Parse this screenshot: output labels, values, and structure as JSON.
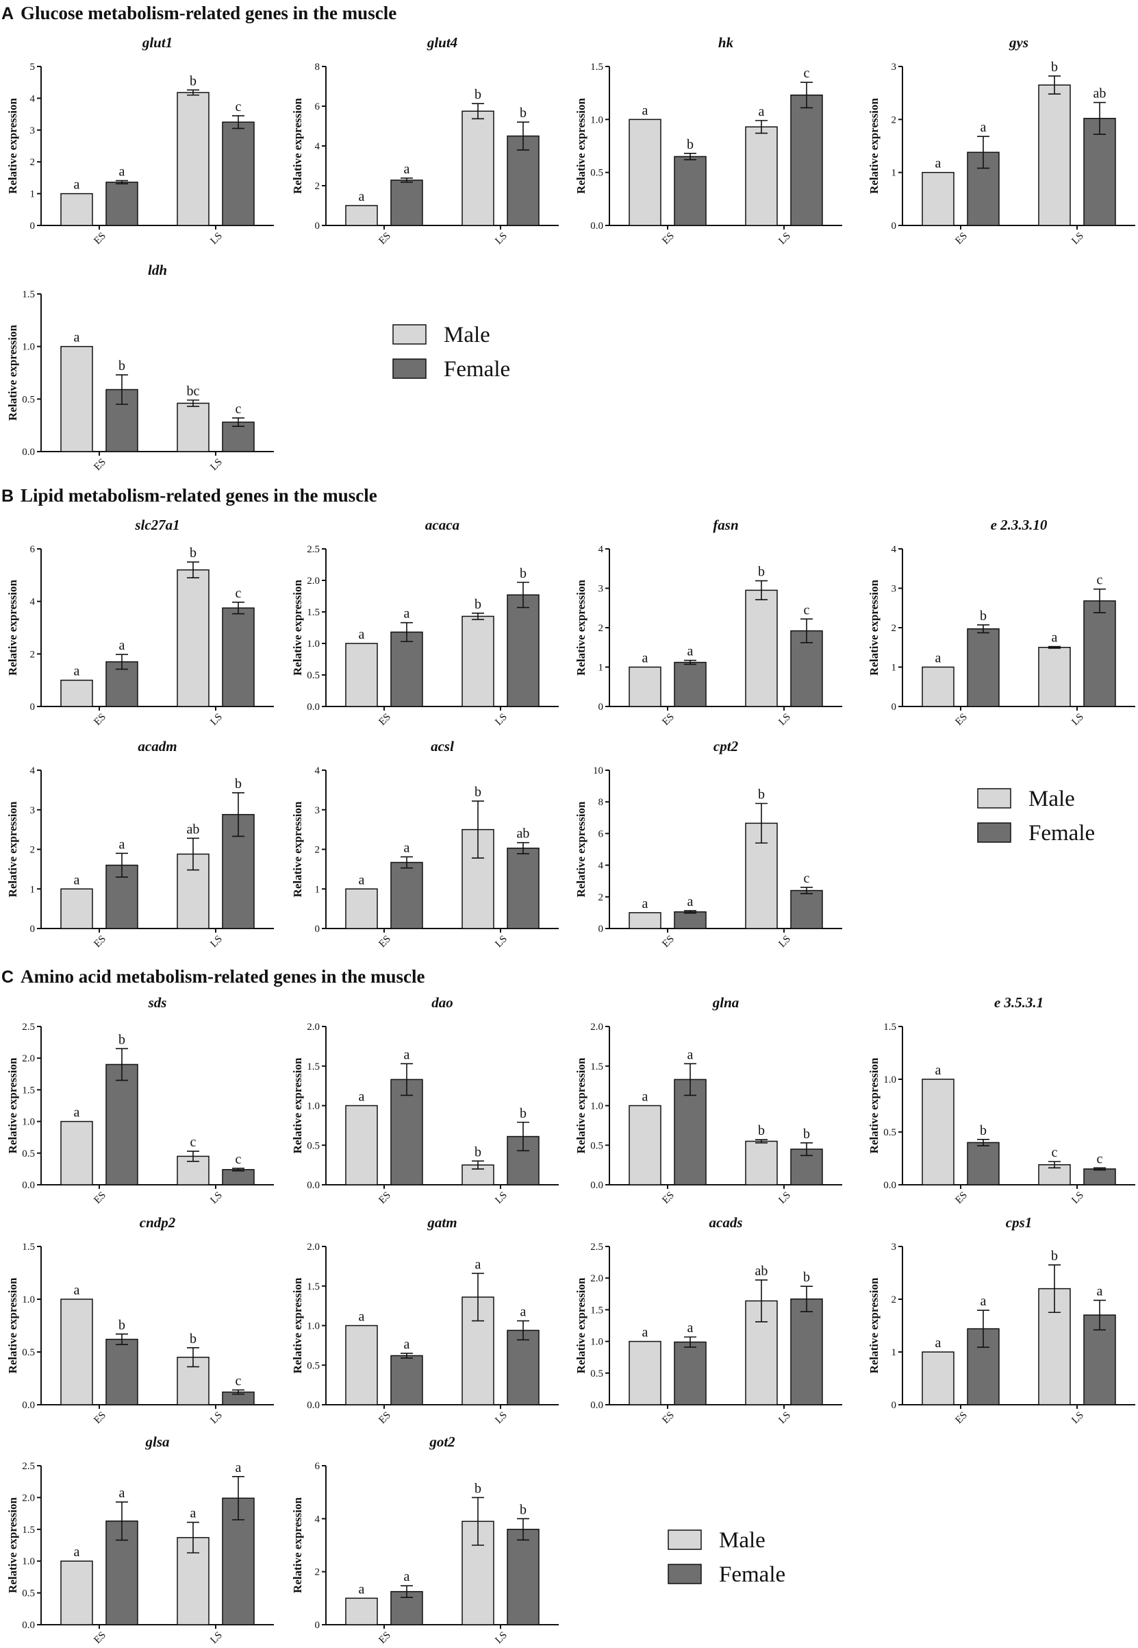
{
  "sections": [
    {
      "letter": "A",
      "title": "Glucose metabolism-related genes in the muscle"
    },
    {
      "letter": "B",
      "title": "Lipid metabolism-related genes in the muscle"
    },
    {
      "letter": "C",
      "title": "Amino acid metabolism-related genes in the muscle"
    }
  ],
  "legends": [
    {
      "male": "Male",
      "female": "Female"
    },
    {
      "male": "Male",
      "female": "Female"
    },
    {
      "male": "Male",
      "female": "Female"
    }
  ],
  "colors": {
    "male": "#d7d7d7",
    "female": "#6f6f6f",
    "axis": "#111111"
  },
  "chart_data": [
    {
      "type": "bar",
      "title": "glut1",
      "ylabel": "Relative expression",
      "categories": [
        "ES",
        "LS"
      ],
      "ylim": [
        0,
        5
      ],
      "yticks": [
        "0",
        "1",
        "2",
        "3",
        "4",
        "5"
      ],
      "series": [
        {
          "name": "Male",
          "values": [
            1.0,
            4.18
          ],
          "errors": [
            0,
            0.08
          ],
          "letters": [
            "a",
            "b"
          ]
        },
        {
          "name": "Female",
          "values": [
            1.36,
            3.25
          ],
          "errors": [
            0.05,
            0.2
          ],
          "letters": [
            "a",
            "c"
          ]
        }
      ]
    },
    {
      "type": "bar",
      "title": "glut4",
      "ylabel": "Relative expression",
      "categories": [
        "ES",
        "LS"
      ],
      "ylim": [
        0,
        8
      ],
      "yticks": [
        "0",
        "2",
        "4",
        "6",
        "8"
      ],
      "series": [
        {
          "name": "Male",
          "values": [
            1.0,
            5.75
          ],
          "errors": [
            0,
            0.38
          ],
          "letters": [
            "a",
            "b"
          ]
        },
        {
          "name": "Female",
          "values": [
            2.28,
            4.5
          ],
          "errors": [
            0.1,
            0.7
          ],
          "letters": [
            "a",
            "b"
          ]
        }
      ]
    },
    {
      "type": "bar",
      "title": "hk",
      "ylabel": "Relative expression",
      "categories": [
        "ES",
        "LS"
      ],
      "ylim": [
        0,
        1.5
      ],
      "yticks": [
        "0.0",
        "0.5",
        "1.0",
        "1.5"
      ],
      "series": [
        {
          "name": "Male",
          "values": [
            1.0,
            0.93
          ],
          "errors": [
            0,
            0.06
          ],
          "letters": [
            "a",
            "a"
          ]
        },
        {
          "name": "Female",
          "values": [
            0.65,
            1.23
          ],
          "errors": [
            0.03,
            0.12
          ],
          "letters": [
            "b",
            "c"
          ]
        }
      ]
    },
    {
      "type": "bar",
      "title": "gys",
      "ylabel": "Relative expression",
      "categories": [
        "ES",
        "LS"
      ],
      "ylim": [
        0,
        3
      ],
      "yticks": [
        "0",
        "1",
        "2",
        "3"
      ],
      "series": [
        {
          "name": "Male",
          "values": [
            1.0,
            2.65
          ],
          "errors": [
            0,
            0.17
          ],
          "letters": [
            "a",
            "b"
          ]
        },
        {
          "name": "Female",
          "values": [
            1.38,
            2.02
          ],
          "errors": [
            0.3,
            0.3
          ],
          "letters": [
            "a",
            "ab"
          ]
        }
      ]
    },
    {
      "type": "bar",
      "title": "ldh",
      "ylabel": "Relative expression",
      "categories": [
        "ES",
        "LS"
      ],
      "ylim": [
        0,
        1.5
      ],
      "yticks": [
        "0.0",
        "0.5",
        "1.0",
        "1.5"
      ],
      "series": [
        {
          "name": "Male",
          "values": [
            1.0,
            0.46
          ],
          "errors": [
            0,
            0.03
          ],
          "letters": [
            "a",
            "bc"
          ]
        },
        {
          "name": "Female",
          "values": [
            0.59,
            0.28
          ],
          "errors": [
            0.14,
            0.04
          ],
          "letters": [
            "b",
            "c"
          ]
        }
      ]
    },
    {
      "type": "bar",
      "title": "slc27a1",
      "ylabel": "Relative expression",
      "categories": [
        "ES",
        "LS"
      ],
      "ylim": [
        0,
        6
      ],
      "yticks": [
        "0",
        "2",
        "4",
        "6"
      ],
      "series": [
        {
          "name": "Male",
          "values": [
            1.0,
            5.2
          ],
          "errors": [
            0,
            0.3
          ],
          "letters": [
            "a",
            "b"
          ]
        },
        {
          "name": "Female",
          "values": [
            1.7,
            3.75
          ],
          "errors": [
            0.28,
            0.22
          ],
          "letters": [
            "a",
            "c"
          ]
        }
      ]
    },
    {
      "type": "bar",
      "title": "acaca",
      "ylabel": "Relative expression",
      "categories": [
        "ES",
        "LS"
      ],
      "ylim": [
        0,
        2.5
      ],
      "yticks": [
        "0.0",
        "0.5",
        "1.0",
        "1.5",
        "2.0",
        "2.5"
      ],
      "series": [
        {
          "name": "Male",
          "values": [
            1.0,
            1.43
          ],
          "errors": [
            0,
            0.05
          ],
          "letters": [
            "a",
            "b"
          ]
        },
        {
          "name": "Female",
          "values": [
            1.18,
            1.77
          ],
          "errors": [
            0.15,
            0.2
          ],
          "letters": [
            "a",
            "b"
          ]
        }
      ]
    },
    {
      "type": "bar",
      "title": "fasn",
      "ylabel": "Relative expression",
      "categories": [
        "ES",
        "LS"
      ],
      "ylim": [
        0,
        4
      ],
      "yticks": [
        "0",
        "1",
        "2",
        "3",
        "4"
      ],
      "series": [
        {
          "name": "Male",
          "values": [
            1.0,
            2.95
          ],
          "errors": [
            0,
            0.24
          ],
          "letters": [
            "a",
            "b"
          ]
        },
        {
          "name": "Female",
          "values": [
            1.12,
            1.92
          ],
          "errors": [
            0.05,
            0.3
          ],
          "letters": [
            "a",
            "c"
          ]
        }
      ]
    },
    {
      "type": "bar",
      "title": "e 2.3.3.10",
      "ylabel": "Relative expression",
      "categories": [
        "ES",
        "LS"
      ],
      "ylim": [
        0,
        4
      ],
      "yticks": [
        "0",
        "1",
        "2",
        "3",
        "4"
      ],
      "series": [
        {
          "name": "Male",
          "values": [
            1.0,
            1.5
          ],
          "errors": [
            0,
            0.02
          ],
          "letters": [
            "a",
            "a"
          ]
        },
        {
          "name": "Female",
          "values": [
            1.97,
            2.68
          ],
          "errors": [
            0.1,
            0.3
          ],
          "letters": [
            "b",
            "c"
          ]
        }
      ]
    },
    {
      "type": "bar",
      "title": "acadm",
      "ylabel": "Relative expression",
      "categories": [
        "ES",
        "LS"
      ],
      "ylim": [
        0,
        4
      ],
      "yticks": [
        "0",
        "1",
        "2",
        "3",
        "4"
      ],
      "series": [
        {
          "name": "Male",
          "values": [
            1.0,
            1.88
          ],
          "errors": [
            0,
            0.4
          ],
          "letters": [
            "a",
            "ab"
          ]
        },
        {
          "name": "Female",
          "values": [
            1.6,
            2.88
          ],
          "errors": [
            0.3,
            0.55
          ],
          "letters": [
            "a",
            "b"
          ]
        }
      ]
    },
    {
      "type": "bar",
      "title": "acsl",
      "ylabel": "Relative expression",
      "categories": [
        "ES",
        "LS"
      ],
      "ylim": [
        0,
        4
      ],
      "yticks": [
        "0",
        "1",
        "2",
        "3",
        "4"
      ],
      "series": [
        {
          "name": "Male",
          "values": [
            1.0,
            2.5
          ],
          "errors": [
            0,
            0.72
          ],
          "letters": [
            "a",
            "b"
          ]
        },
        {
          "name": "Female",
          "values": [
            1.67,
            2.03
          ],
          "errors": [
            0.14,
            0.14
          ],
          "letters": [
            "a",
            "ab"
          ]
        }
      ]
    },
    {
      "type": "bar",
      "title": "cpt2",
      "ylabel": "Relative expression",
      "categories": [
        "ES",
        "LS"
      ],
      "ylim": [
        0,
        10
      ],
      "yticks": [
        "0",
        "2",
        "4",
        "6",
        "8",
        "10"
      ],
      "series": [
        {
          "name": "Male",
          "values": [
            1.0,
            6.65
          ],
          "errors": [
            0,
            1.25
          ],
          "letters": [
            "a",
            "b"
          ]
        },
        {
          "name": "Female",
          "values": [
            1.05,
            2.4
          ],
          "errors": [
            0.08,
            0.2
          ],
          "letters": [
            "a",
            "c"
          ]
        }
      ]
    },
    {
      "type": "bar",
      "title": "sds",
      "ylabel": "Relative expression",
      "categories": [
        "ES",
        "LS"
      ],
      "ylim": [
        0,
        2.5
      ],
      "yticks": [
        "0.0",
        "0.5",
        "1.0",
        "1.5",
        "2.0",
        "2.5"
      ],
      "series": [
        {
          "name": "Male",
          "values": [
            1.0,
            0.45
          ],
          "errors": [
            0,
            0.08
          ],
          "letters": [
            "a",
            "c"
          ]
        },
        {
          "name": "Female",
          "values": [
            1.9,
            0.24
          ],
          "errors": [
            0.25,
            0.02
          ],
          "letters": [
            "b",
            "c"
          ]
        }
      ]
    },
    {
      "type": "bar",
      "title": "dao",
      "ylabel": "Relative expression",
      "categories": [
        "ES",
        "LS"
      ],
      "ylim": [
        0,
        2.0
      ],
      "yticks": [
        "0.0",
        "0.5",
        "1.0",
        "1.5",
        "2.0"
      ],
      "series": [
        {
          "name": "Male",
          "values": [
            1.0,
            0.25
          ],
          "errors": [
            0,
            0.05
          ],
          "letters": [
            "a",
            "b"
          ]
        },
        {
          "name": "Female",
          "values": [
            1.33,
            0.61
          ],
          "errors": [
            0.2,
            0.18
          ],
          "letters": [
            "a",
            "b"
          ]
        }
      ]
    },
    {
      "type": "bar",
      "title": "glna",
      "ylabel": "Relative expression",
      "categories": [
        "ES",
        "LS"
      ],
      "ylim": [
        0,
        2.0
      ],
      "yticks": [
        "0.0",
        "0.5",
        "1.0",
        "1.5",
        "2.0"
      ],
      "series": [
        {
          "name": "Male",
          "values": [
            1.0,
            0.55
          ],
          "errors": [
            0,
            0.02
          ],
          "letters": [
            "a",
            "b"
          ]
        },
        {
          "name": "Female",
          "values": [
            1.33,
            0.45
          ],
          "errors": [
            0.2,
            0.08
          ],
          "letters": [
            "a",
            "b"
          ]
        }
      ]
    },
    {
      "type": "bar",
      "title": "e 3.5.3.1",
      "ylabel": "Relative expression",
      "categories": [
        "ES",
        "LS"
      ],
      "ylim": [
        0,
        1.5
      ],
      "yticks": [
        "0.0",
        "0.5",
        "1.0",
        "1.5"
      ],
      "series": [
        {
          "name": "Male",
          "values": [
            1.0,
            0.19
          ],
          "errors": [
            0,
            0.03
          ],
          "letters": [
            "a",
            "c"
          ]
        },
        {
          "name": "Female",
          "values": [
            0.4,
            0.15
          ],
          "errors": [
            0.03,
            0.01
          ],
          "letters": [
            "b",
            "c"
          ]
        }
      ]
    },
    {
      "type": "bar",
      "title": "cndp2",
      "ylabel": "Relative expression",
      "categories": [
        "ES",
        "LS"
      ],
      "ylim": [
        0,
        1.5
      ],
      "yticks": [
        "0.0",
        "0.5",
        "1.0",
        "1.5"
      ],
      "series": [
        {
          "name": "Male",
          "values": [
            1.0,
            0.45
          ],
          "errors": [
            0,
            0.09
          ],
          "letters": [
            "a",
            "b"
          ]
        },
        {
          "name": "Female",
          "values": [
            0.62,
            0.12
          ],
          "errors": [
            0.05,
            0.02
          ],
          "letters": [
            "b",
            "c"
          ]
        }
      ]
    },
    {
      "type": "bar",
      "title": "gatm",
      "ylabel": "Relative expression",
      "categories": [
        "ES",
        "LS"
      ],
      "ylim": [
        0,
        2.0
      ],
      "yticks": [
        "0.0",
        "0.5",
        "1.0",
        "1.5",
        "2.0"
      ],
      "series": [
        {
          "name": "Male",
          "values": [
            1.0,
            1.36
          ],
          "errors": [
            0,
            0.3
          ],
          "letters": [
            "a",
            "a"
          ]
        },
        {
          "name": "Female",
          "values": [
            0.62,
            0.94
          ],
          "errors": [
            0.03,
            0.12
          ],
          "letters": [
            "a",
            "a"
          ]
        }
      ]
    },
    {
      "type": "bar",
      "title": "acads",
      "ylabel": "Relative expression",
      "categories": [
        "ES",
        "LS"
      ],
      "ylim": [
        0,
        2.5
      ],
      "yticks": [
        "0.0",
        "0.5",
        "1.0",
        "1.5",
        "2.0",
        "2.5"
      ],
      "series": [
        {
          "name": "Male",
          "values": [
            1.0,
            1.64
          ],
          "errors": [
            0,
            0.33
          ],
          "letters": [
            "a",
            "ab"
          ]
        },
        {
          "name": "Female",
          "values": [
            0.99,
            1.67
          ],
          "errors": [
            0.08,
            0.2
          ],
          "letters": [
            "a",
            "b"
          ]
        }
      ]
    },
    {
      "type": "bar",
      "title": "cps1",
      "ylabel": "Relative expression",
      "categories": [
        "ES",
        "LS"
      ],
      "ylim": [
        0,
        3
      ],
      "yticks": [
        "0",
        "1",
        "2",
        "3"
      ],
      "series": [
        {
          "name": "Male",
          "values": [
            1.0,
            2.2
          ],
          "errors": [
            0,
            0.45
          ],
          "letters": [
            "a",
            "b"
          ]
        },
        {
          "name": "Female",
          "values": [
            1.44,
            1.7
          ],
          "errors": [
            0.35,
            0.28
          ],
          "letters": [
            "a",
            "a"
          ]
        }
      ]
    },
    {
      "type": "bar",
      "title": "glsa",
      "ylabel": "Relative expression",
      "categories": [
        "ES",
        "LS"
      ],
      "ylim": [
        0,
        2.5
      ],
      "yticks": [
        "0.0",
        "0.5",
        "1.0",
        "1.5",
        "2.0",
        "2.5"
      ],
      "series": [
        {
          "name": "Male",
          "values": [
            1.0,
            1.37
          ],
          "errors": [
            0,
            0.24
          ],
          "letters": [
            "a",
            "a"
          ]
        },
        {
          "name": "Female",
          "values": [
            1.63,
            1.99
          ],
          "errors": [
            0.3,
            0.34
          ],
          "letters": [
            "a",
            "a"
          ]
        }
      ]
    },
    {
      "type": "bar",
      "title": "got2",
      "ylabel": "Relative expression",
      "categories": [
        "ES",
        "LS"
      ],
      "ylim": [
        0,
        6
      ],
      "yticks": [
        "0",
        "2",
        "4",
        "6"
      ],
      "series": [
        {
          "name": "Male",
          "values": [
            1.0,
            3.9
          ],
          "errors": [
            0,
            0.9
          ],
          "letters": [
            "a",
            "b"
          ]
        },
        {
          "name": "Female",
          "values": [
            1.25,
            3.6
          ],
          "errors": [
            0.22,
            0.4
          ],
          "letters": [
            "a",
            "b"
          ]
        }
      ]
    }
  ]
}
